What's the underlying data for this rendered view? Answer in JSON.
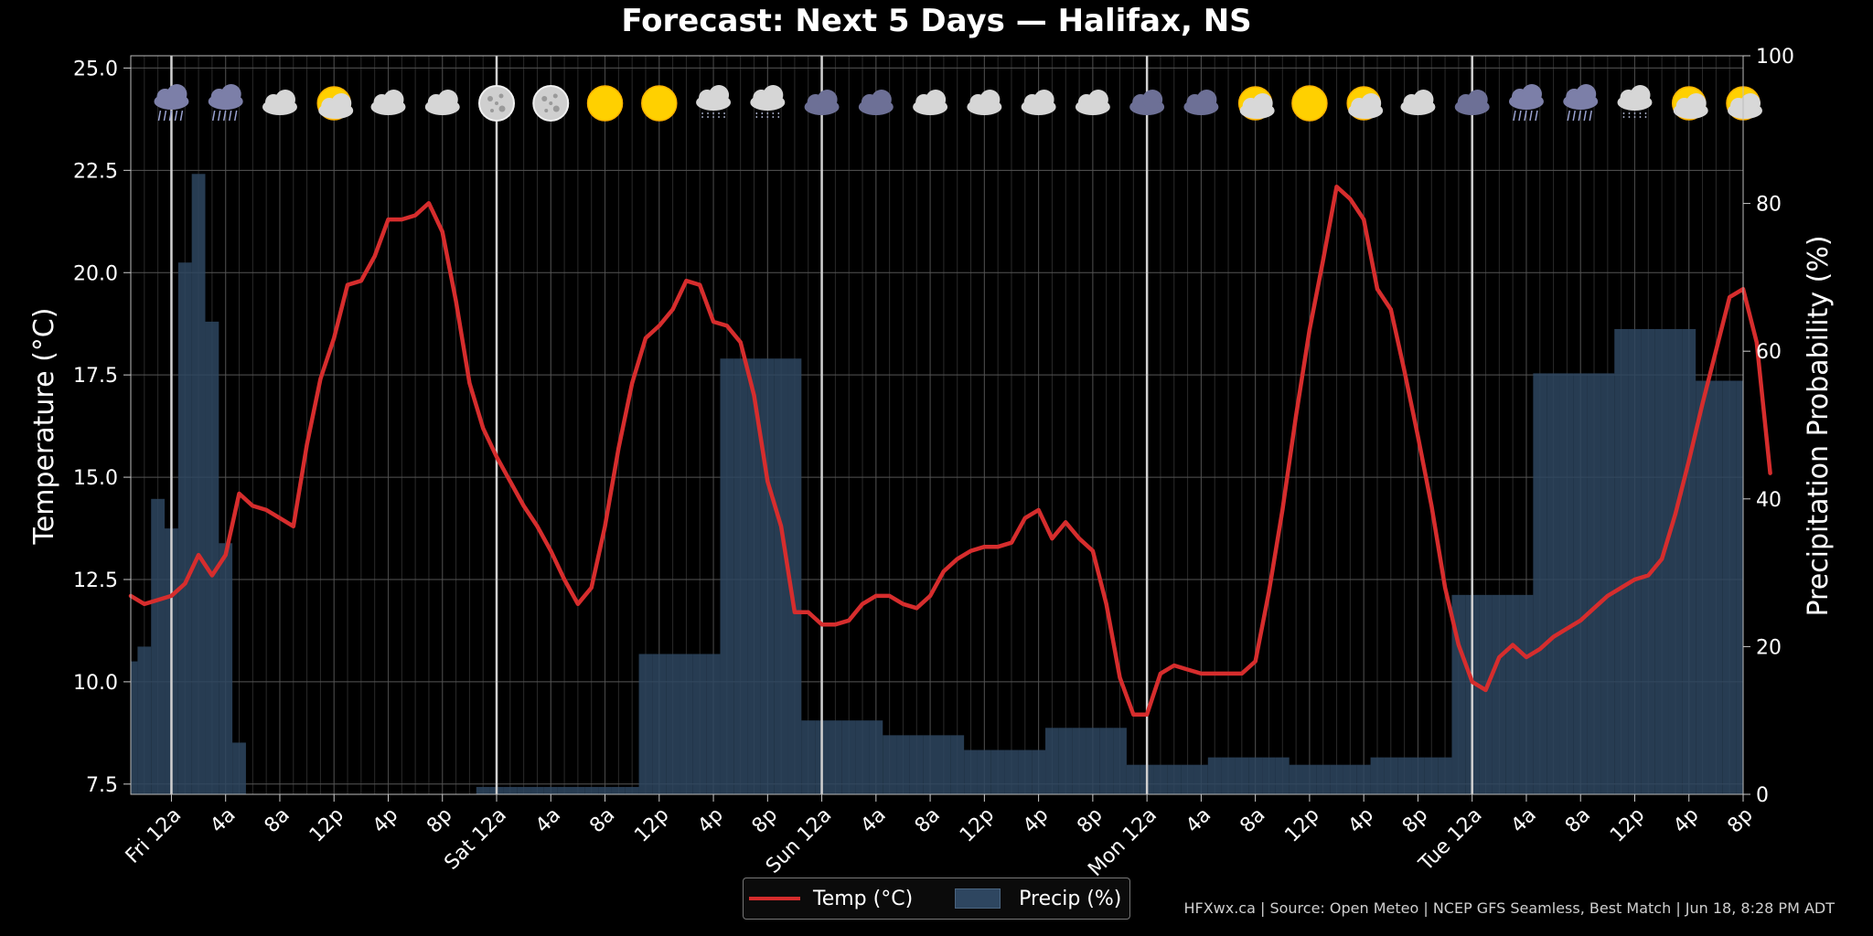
{
  "chart_data": {
    "type": "line+bar",
    "title": "Forecast: Next 5 Days — Halifax, NS",
    "ylabel_left": "Temperature (°C)",
    "ylabel_right": "Precipitation Probability (%)",
    "ylim_left": [
      7.25,
      25.3
    ],
    "yticks_left": [
      "7.5",
      "10.0",
      "12.5",
      "15.0",
      "17.5",
      "20.0",
      "22.5",
      "25.0"
    ],
    "ylim_right": [
      0,
      100
    ],
    "yticks_right": [
      "0",
      "20",
      "40",
      "60",
      "80",
      "100"
    ],
    "x_unit": "hours since Thu 9p",
    "xlim": [
      0,
      119
    ],
    "xticks": [
      {
        "h": 3,
        "label": "Fri 12a"
      },
      {
        "h": 7,
        "label": "4a"
      },
      {
        "h": 11,
        "label": "8a"
      },
      {
        "h": 15,
        "label": "12p"
      },
      {
        "h": 19,
        "label": "4p"
      },
      {
        "h": 23,
        "label": "8p"
      },
      {
        "h": 27,
        "label": "Sat 12a"
      },
      {
        "h": 31,
        "label": "4a"
      },
      {
        "h": 35,
        "label": "8a"
      },
      {
        "h": 39,
        "label": "12p"
      },
      {
        "h": 43,
        "label": "4p"
      },
      {
        "h": 47,
        "label": "8p"
      },
      {
        "h": 51,
        "label": "Sun 12a"
      },
      {
        "h": 55,
        "label": "4a"
      },
      {
        "h": 59,
        "label": "8a"
      },
      {
        "h": 63,
        "label": "12p"
      },
      {
        "h": 67,
        "label": "4p"
      },
      {
        "h": 71,
        "label": "8p"
      },
      {
        "h": 75,
        "label": "Mon 12a"
      },
      {
        "h": 79,
        "label": "4a"
      },
      {
        "h": 83,
        "label": "8a"
      },
      {
        "h": 87,
        "label": "12p"
      },
      {
        "h": 91,
        "label": "4p"
      },
      {
        "h": 95,
        "label": "8p"
      },
      {
        "h": 99,
        "label": "Tue 12a"
      },
      {
        "h": 103,
        "label": "4a"
      },
      {
        "h": 107,
        "label": "8a"
      },
      {
        "h": 111,
        "label": "12p"
      },
      {
        "h": 115,
        "label": "4p"
      },
      {
        "h": 119,
        "label": "8p"
      }
    ],
    "day_separators": [
      3,
      27,
      51,
      75,
      99
    ],
    "grid": true,
    "legend_position": "bottom-center",
    "series": [
      {
        "name": "Temp (°C)",
        "axis": "left",
        "color": "#d62d2d",
        "values": [
          12.1,
          11.9,
          12.0,
          12.1,
          12.4,
          13.1,
          12.6,
          13.1,
          14.6,
          14.3,
          14.2,
          14.0,
          13.8,
          15.8,
          17.4,
          18.4,
          19.7,
          19.8,
          20.4,
          21.3,
          21.3,
          21.4,
          21.7,
          21.0,
          19.3,
          17.3,
          16.2,
          15.5,
          14.9,
          14.3,
          13.8,
          13.2,
          12.5,
          11.9,
          12.3,
          13.8,
          15.7,
          17.3,
          18.4,
          18.7,
          19.1,
          19.8,
          19.7,
          18.8,
          18.7,
          18.3,
          17.0,
          14.9,
          13.8,
          11.7,
          11.7,
          11.4,
          11.4,
          11.5,
          11.9,
          12.1,
          12.1,
          11.9,
          11.8,
          12.1,
          12.7,
          13.0,
          13.2,
          13.3,
          13.3,
          13.4,
          14.0,
          14.2,
          13.5,
          13.9,
          13.5,
          13.2,
          11.9,
          10.1,
          9.2,
          9.2,
          10.2,
          10.4,
          10.3,
          10.2,
          10.2,
          10.2,
          10.2,
          10.5,
          12.2,
          14.2,
          16.5,
          18.6,
          20.3,
          22.1,
          21.8,
          21.3,
          19.6,
          19.1,
          17.6,
          16.0,
          14.3,
          12.3,
          10.9,
          10.0,
          9.8,
          10.6,
          10.9,
          10.6,
          10.8,
          11.1,
          11.3,
          11.5,
          11.8,
          12.1,
          12.3,
          12.5,
          12.6,
          13.0,
          14.1,
          15.4,
          16.8,
          18.1,
          19.4,
          19.6,
          18.3,
          15.1
        ]
      },
      {
        "name": "Precip (%)",
        "axis": "right",
        "color": "#2e4660",
        "values": [
          18,
          20,
          40,
          36,
          72,
          84,
          64,
          34,
          7,
          0,
          0,
          0,
          0,
          0,
          0,
          0,
          0,
          0,
          0,
          0,
          0,
          0,
          0,
          0,
          0,
          0,
          1,
          1,
          1,
          1,
          1,
          1,
          1,
          1,
          1,
          1,
          1,
          1,
          19,
          19,
          19,
          19,
          19,
          19,
          59,
          59,
          59,
          59,
          59,
          59,
          10,
          10,
          10,
          10,
          10,
          10,
          8,
          8,
          8,
          8,
          8,
          8,
          6,
          6,
          6,
          6,
          6,
          6,
          9,
          9,
          9,
          9,
          9,
          9,
          4,
          4,
          4,
          4,
          4,
          4,
          5,
          5,
          5,
          5,
          5,
          5,
          4,
          4,
          4,
          4,
          4,
          4,
          5,
          5,
          5,
          5,
          5,
          5,
          27,
          27,
          27,
          27,
          27,
          27,
          57,
          57,
          57,
          57,
          57,
          57,
          63,
          63,
          63,
          63,
          63,
          63,
          56,
          56,
          56,
          56,
          56
        ]
      }
    ],
    "weather_icons": [
      "thunderstorm-icon",
      "thunderstorm-icon",
      "cloudy-icon",
      "partly-sunny-icon",
      "cloudy-icon",
      "cloudy-icon",
      "moon-icon",
      "moon-icon",
      "sunny-icon",
      "sunny-icon",
      "drizzle-icon",
      "drizzle-icon",
      "dark-cloud-icon",
      "dark-cloud-icon",
      "cloudy-icon",
      "cloudy-icon",
      "cloudy-icon",
      "cloudy-icon",
      "dark-cloud-icon",
      "dark-cloud-icon",
      "partly-sunny-icon",
      "sunny-icon",
      "partly-sunny-icon",
      "cloudy-icon",
      "dark-cloud-icon",
      "thunderstorm-icon",
      "thunderstorm-icon",
      "drizzle-icon",
      "partly-sunny-icon",
      "partly-sunny-icon"
    ]
  },
  "legend": {
    "temp_label": "Temp (°C)",
    "precip_label": "Precip (%)"
  },
  "footer": "HFXwx.ca | Source: Open Meteo | NCEP GFS Seamless, Best Match | Jun 18, 8:28 PM ADT",
  "colors": {
    "background": "#000000",
    "temp_line": "#d62d2d",
    "precip_bar": "#2e4660",
    "grid": "#444444"
  }
}
